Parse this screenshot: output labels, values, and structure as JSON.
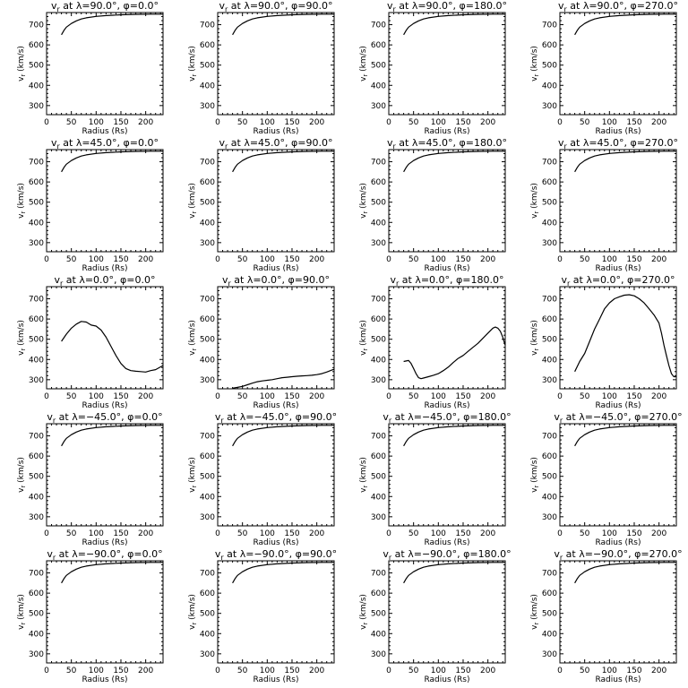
{
  "chart_data": [
    {
      "type": "line",
      "title": "v_r at λ=90.0°, φ=0.0°",
      "subscript": "r",
      "title_prefix": "v",
      "title_rest": " at λ=90.0°, φ=0.0°",
      "xlabel": "Radius (Rs)",
      "ylabel": "v_r (km/s)",
      "ylabel_prefix": "v",
      "ylabel_sub": "r",
      "ylabel_rest": " (km/s)",
      "xlim": [
        0,
        235
      ],
      "ylim": [
        255,
        760
      ],
      "xticks": [
        0,
        50,
        100,
        150,
        200
      ],
      "yticks": [
        300,
        400,
        500,
        600,
        700
      ],
      "x": [
        30,
        35,
        40,
        50,
        60,
        70,
        80,
        100,
        120,
        150,
        180,
        210,
        235
      ],
      "y": [
        650,
        672,
        688,
        706,
        719,
        728,
        734,
        741,
        745,
        749,
        751,
        752,
        752
      ]
    },
    {
      "type": "line",
      "title": "v_r at λ=90.0°, φ=90.0°",
      "title_prefix": "v",
      "title_rest": " at λ=90.0°, φ=90.0°",
      "xlabel": "Radius (Rs)",
      "ylabel_prefix": "v",
      "ylabel_sub": "r",
      "ylabel_rest": " (km/s)",
      "xlim": [
        0,
        235
      ],
      "ylim": [
        255,
        760
      ],
      "xticks": [
        0,
        50,
        100,
        150,
        200
      ],
      "yticks": [
        300,
        400,
        500,
        600,
        700
      ],
      "x": [
        30,
        35,
        40,
        50,
        60,
        70,
        80,
        100,
        120,
        150,
        180,
        210,
        235
      ],
      "y": [
        650,
        672,
        688,
        706,
        719,
        728,
        734,
        741,
        745,
        749,
        751,
        752,
        752
      ]
    },
    {
      "type": "line",
      "title": "v_r at λ=90.0°, φ=180.0°",
      "title_prefix": "v",
      "title_rest": " at λ=90.0°, φ=180.0°",
      "xlabel": "Radius (Rs)",
      "ylabel_prefix": "v",
      "ylabel_sub": "r",
      "ylabel_rest": " (km/s)",
      "xlim": [
        0,
        235
      ],
      "ylim": [
        255,
        760
      ],
      "xticks": [
        0,
        50,
        100,
        150,
        200
      ],
      "yticks": [
        300,
        400,
        500,
        600,
        700
      ],
      "x": [
        30,
        35,
        40,
        50,
        60,
        70,
        80,
        100,
        120,
        150,
        180,
        210,
        235
      ],
      "y": [
        650,
        672,
        688,
        706,
        719,
        728,
        734,
        741,
        745,
        749,
        751,
        752,
        752
      ]
    },
    {
      "type": "line",
      "title": "v_r at λ=90.0°, φ=270.0°",
      "title_prefix": "v",
      "title_rest": " at λ=90.0°, φ=270.0°",
      "xlabel": "Radius (Rs)",
      "ylabel_prefix": "v",
      "ylabel_sub": "r",
      "ylabel_rest": " (km/s)",
      "xlim": [
        0,
        235
      ],
      "ylim": [
        255,
        760
      ],
      "xticks": [
        0,
        50,
        100,
        150,
        200
      ],
      "yticks": [
        300,
        400,
        500,
        600,
        700
      ],
      "x": [
        30,
        35,
        40,
        50,
        60,
        70,
        80,
        100,
        120,
        150,
        180,
        210,
        235
      ],
      "y": [
        650,
        672,
        688,
        706,
        719,
        728,
        734,
        741,
        745,
        749,
        751,
        752,
        752
      ]
    },
    {
      "type": "line",
      "title": "v_r at λ=45.0°, φ=0.0°",
      "title_prefix": "v",
      "title_rest": " at λ=45.0°, φ=0.0°",
      "xlabel": "Radius (Rs)",
      "ylabel_prefix": "v",
      "ylabel_sub": "r",
      "ylabel_rest": " (km/s)",
      "xlim": [
        0,
        235
      ],
      "ylim": [
        255,
        760
      ],
      "xticks": [
        0,
        50,
        100,
        150,
        200
      ],
      "yticks": [
        300,
        400,
        500,
        600,
        700
      ],
      "x": [
        30,
        35,
        40,
        50,
        60,
        70,
        80,
        100,
        120,
        150,
        180,
        210,
        235
      ],
      "y": [
        650,
        672,
        688,
        706,
        719,
        728,
        734,
        741,
        745,
        749,
        751,
        752,
        752
      ]
    },
    {
      "type": "line",
      "title": "v_r at λ=45.0°, φ=90.0°",
      "title_prefix": "v",
      "title_rest": " at λ=45.0°, φ=90.0°",
      "xlabel": "Radius (Rs)",
      "ylabel_prefix": "v",
      "ylabel_sub": "r",
      "ylabel_rest": " (km/s)",
      "xlim": [
        0,
        235
      ],
      "ylim": [
        255,
        760
      ],
      "xticks": [
        0,
        50,
        100,
        150,
        200
      ],
      "yticks": [
        300,
        400,
        500,
        600,
        700
      ],
      "x": [
        30,
        35,
        40,
        50,
        60,
        70,
        80,
        100,
        120,
        150,
        180,
        210,
        235
      ],
      "y": [
        650,
        672,
        688,
        706,
        719,
        728,
        734,
        741,
        745,
        749,
        751,
        752,
        752
      ]
    },
    {
      "type": "line",
      "title": "v_r at λ=45.0°, φ=180.0°",
      "title_prefix": "v",
      "title_rest": " at λ=45.0°, φ=180.0°",
      "xlabel": "Radius (Rs)",
      "ylabel_prefix": "v",
      "ylabel_sub": "r",
      "ylabel_rest": " (km/s)",
      "xlim": [
        0,
        235
      ],
      "ylim": [
        255,
        760
      ],
      "xticks": [
        0,
        50,
        100,
        150,
        200
      ],
      "yticks": [
        300,
        400,
        500,
        600,
        700
      ],
      "x": [
        30,
        35,
        40,
        50,
        60,
        70,
        80,
        100,
        120,
        150,
        180,
        210,
        235
      ],
      "y": [
        650,
        672,
        688,
        706,
        719,
        728,
        734,
        741,
        745,
        749,
        751,
        752,
        752
      ]
    },
    {
      "type": "line",
      "title": "v_r at λ=45.0°, φ=270.0°",
      "title_prefix": "v",
      "title_rest": " at λ=45.0°, φ=270.0°",
      "xlabel": "Radius (Rs)",
      "ylabel_prefix": "v",
      "ylabel_sub": "r",
      "ylabel_rest": " (km/s)",
      "xlim": [
        0,
        235
      ],
      "ylim": [
        255,
        760
      ],
      "xticks": [
        0,
        50,
        100,
        150,
        200
      ],
      "yticks": [
        300,
        400,
        500,
        600,
        700
      ],
      "x": [
        30,
        35,
        40,
        50,
        60,
        70,
        80,
        100,
        120,
        150,
        180,
        210,
        235
      ],
      "y": [
        650,
        672,
        688,
        706,
        719,
        728,
        734,
        741,
        745,
        749,
        751,
        752,
        752
      ]
    },
    {
      "type": "line",
      "title": "v_r at λ=0.0°, φ=0.0°",
      "title_prefix": "v",
      "title_rest": " at λ=0.0°, φ=0.0°",
      "xlabel": "Radius (Rs)",
      "ylabel_prefix": "v",
      "ylabel_sub": "r",
      "ylabel_rest": " (km/s)",
      "xlim": [
        0,
        235
      ],
      "ylim": [
        255,
        760
      ],
      "xticks": [
        0,
        50,
        100,
        150,
        200
      ],
      "yticks": [
        300,
        400,
        500,
        600,
        700
      ],
      "x": [
        30,
        40,
        50,
        60,
        70,
        80,
        90,
        100,
        110,
        120,
        130,
        140,
        150,
        160,
        170,
        180,
        190,
        200,
        210,
        220,
        235
      ],
      "y": [
        490,
        525,
        555,
        575,
        588,
        585,
        570,
        565,
        545,
        510,
        465,
        420,
        380,
        355,
        345,
        342,
        340,
        338,
        345,
        350,
        370
      ]
    },
    {
      "type": "line",
      "title": "v_r at λ=0.0°, φ=90.0°",
      "title_prefix": "v",
      "title_rest": " at λ=0.0°, φ=90.0°",
      "xlabel": "Radius (Rs)",
      "ylabel_prefix": "v",
      "ylabel_sub": "r",
      "ylabel_rest": " (km/s)",
      "xlim": [
        0,
        235
      ],
      "ylim": [
        255,
        760
      ],
      "xticks": [
        0,
        50,
        100,
        150,
        200
      ],
      "yticks": [
        300,
        400,
        500,
        600,
        700
      ],
      "x": [
        30,
        40,
        50,
        60,
        70,
        80,
        90,
        100,
        110,
        120,
        130,
        140,
        150,
        160,
        170,
        180,
        190,
        200,
        210,
        220,
        235
      ],
      "y": [
        258,
        262,
        267,
        275,
        283,
        290,
        294,
        297,
        300,
        305,
        310,
        312,
        315,
        317,
        319,
        320,
        322,
        325,
        330,
        338,
        352
      ]
    },
    {
      "type": "line",
      "title": "v_r at λ=0.0°, φ=180.0°",
      "title_prefix": "v",
      "title_rest": " at λ=0.0°, φ=180.0°",
      "xlabel": "Radius (Rs)",
      "ylabel_prefix": "v",
      "ylabel_sub": "r",
      "ylabel_rest": " (km/s)",
      "xlim": [
        0,
        235
      ],
      "ylim": [
        255,
        760
      ],
      "xticks": [
        0,
        50,
        100,
        150,
        200
      ],
      "yticks": [
        300,
        400,
        500,
        600,
        700
      ],
      "x": [
        30,
        40,
        45,
        50,
        55,
        60,
        65,
        70,
        80,
        90,
        100,
        110,
        120,
        130,
        140,
        150,
        160,
        170,
        180,
        190,
        200,
        210,
        215,
        220,
        225,
        230,
        235
      ],
      "y": [
        390,
        395,
        380,
        355,
        330,
        310,
        305,
        308,
        315,
        322,
        330,
        345,
        362,
        385,
        405,
        420,
        440,
        460,
        480,
        505,
        530,
        555,
        560,
        555,
        540,
        510,
        470
      ]
    },
    {
      "type": "line",
      "title": "v_r at λ=0.0°, φ=270.0°",
      "title_prefix": "v",
      "title_rest": " at λ=0.0°, φ=270.0°",
      "xlabel": "Radius (Rs)",
      "ylabel_prefix": "v",
      "ylabel_sub": "r",
      "ylabel_rest": " (km/s)",
      "xlim": [
        0,
        235
      ],
      "ylim": [
        255,
        760
      ],
      "xticks": [
        0,
        50,
        100,
        150,
        200
      ],
      "yticks": [
        300,
        400,
        500,
        600,
        700
      ],
      "x": [
        30,
        40,
        50,
        60,
        70,
        80,
        90,
        100,
        110,
        120,
        130,
        140,
        150,
        160,
        170,
        180,
        190,
        200,
        205,
        210,
        215,
        220,
        225,
        230,
        235
      ],
      "y": [
        340,
        390,
        430,
        490,
        550,
        600,
        650,
        680,
        700,
        710,
        718,
        720,
        715,
        700,
        680,
        650,
        620,
        580,
        530,
        470,
        420,
        370,
        330,
        315,
        315
      ]
    },
    {
      "type": "line",
      "title": "v_r at λ=-45.0°, φ=0.0°",
      "title_prefix": "v",
      "title_rest": " at λ=−45.0°, φ=0.0°",
      "xlabel": "Radius (Rs)",
      "ylabel_prefix": "v",
      "ylabel_sub": "r",
      "ylabel_rest": " (km/s)",
      "xlim": [
        0,
        235
      ],
      "ylim": [
        255,
        760
      ],
      "xticks": [
        0,
        50,
        100,
        150,
        200
      ],
      "yticks": [
        300,
        400,
        500,
        600,
        700
      ],
      "x": [
        30,
        35,
        40,
        50,
        60,
        70,
        80,
        100,
        120,
        150,
        180,
        210,
        235
      ],
      "y": [
        650,
        672,
        688,
        706,
        719,
        728,
        734,
        741,
        745,
        749,
        751,
        752,
        752
      ]
    },
    {
      "type": "line",
      "title": "v_r at λ=-45.0°, φ=90.0°",
      "title_prefix": "v",
      "title_rest": " at λ=−45.0°, φ=90.0°",
      "xlabel": "Radius (Rs)",
      "ylabel_prefix": "v",
      "ylabel_sub": "r",
      "ylabel_rest": " (km/s)",
      "xlim": [
        0,
        235
      ],
      "ylim": [
        255,
        760
      ],
      "xticks": [
        0,
        50,
        100,
        150,
        200
      ],
      "yticks": [
        300,
        400,
        500,
        600,
        700
      ],
      "x": [
        30,
        35,
        40,
        50,
        60,
        70,
        80,
        100,
        120,
        150,
        180,
        210,
        235
      ],
      "y": [
        650,
        672,
        688,
        706,
        719,
        728,
        734,
        741,
        745,
        749,
        751,
        752,
        752
      ]
    },
    {
      "type": "line",
      "title": "v_r at λ=-45.0°, φ=180.0°",
      "title_prefix": "v",
      "title_rest": " at λ=−45.0°, φ=180.0°",
      "xlabel": "Radius (Rs)",
      "ylabel_prefix": "v",
      "ylabel_sub": "r",
      "ylabel_rest": " (km/s)",
      "xlim": [
        0,
        235
      ],
      "ylim": [
        255,
        760
      ],
      "xticks": [
        0,
        50,
        100,
        150,
        200
      ],
      "yticks": [
        300,
        400,
        500,
        600,
        700
      ],
      "x": [
        30,
        35,
        40,
        50,
        60,
        70,
        80,
        100,
        120,
        150,
        180,
        210,
        235
      ],
      "y": [
        650,
        672,
        688,
        706,
        719,
        728,
        734,
        741,
        745,
        749,
        751,
        752,
        752
      ]
    },
    {
      "type": "line",
      "title": "v_r at λ=-45.0°, φ=270.0°",
      "title_prefix": "v",
      "title_rest": " at λ=−45.0°, φ=270.0°",
      "xlabel": "Radius (Rs)",
      "ylabel_prefix": "v",
      "ylabel_sub": "r",
      "ylabel_rest": " (km/s)",
      "xlim": [
        0,
        235
      ],
      "ylim": [
        255,
        760
      ],
      "xticks": [
        0,
        50,
        100,
        150,
        200
      ],
      "yticks": [
        300,
        400,
        500,
        600,
        700
      ],
      "x": [
        30,
        35,
        40,
        50,
        60,
        70,
        80,
        100,
        120,
        150,
        180,
        210,
        235
      ],
      "y": [
        650,
        672,
        688,
        706,
        719,
        728,
        734,
        741,
        745,
        749,
        751,
        752,
        752
      ]
    },
    {
      "type": "line",
      "title": "v_r at λ=-90.0°, φ=0.0°",
      "title_prefix": "v",
      "title_rest": " at λ=−90.0°, φ=0.0°",
      "xlabel": "Radius (Rs)",
      "ylabel_prefix": "v",
      "ylabel_sub": "r",
      "ylabel_rest": " (km/s)",
      "xlim": [
        0,
        235
      ],
      "ylim": [
        255,
        760
      ],
      "xticks": [
        0,
        50,
        100,
        150,
        200
      ],
      "yticks": [
        300,
        400,
        500,
        600,
        700
      ],
      "x": [
        30,
        35,
        40,
        50,
        60,
        70,
        80,
        100,
        120,
        150,
        180,
        210,
        235
      ],
      "y": [
        650,
        672,
        688,
        706,
        719,
        728,
        734,
        741,
        745,
        749,
        751,
        752,
        752
      ]
    },
    {
      "type": "line",
      "title": "v_r at λ=-90.0°, φ=90.0°",
      "title_prefix": "v",
      "title_rest": " at λ=−90.0°, φ=90.0°",
      "xlabel": "Radius (Rs)",
      "ylabel_prefix": "v",
      "ylabel_sub": "r",
      "ylabel_rest": " (km/s)",
      "xlim": [
        0,
        235
      ],
      "ylim": [
        255,
        760
      ],
      "xticks": [
        0,
        50,
        100,
        150,
        200
      ],
      "yticks": [
        300,
        400,
        500,
        600,
        700
      ],
      "x": [
        30,
        35,
        40,
        50,
        60,
        70,
        80,
        100,
        120,
        150,
        180,
        210,
        235
      ],
      "y": [
        650,
        672,
        688,
        706,
        719,
        728,
        734,
        741,
        745,
        749,
        751,
        752,
        752
      ]
    },
    {
      "type": "line",
      "title": "v_r at λ=-90.0°, φ=180.0°",
      "title_prefix": "v",
      "title_rest": " at λ=−90.0°, φ=180.0°",
      "xlabel": "Radius (Rs)",
      "ylabel_prefix": "v",
      "ylabel_sub": "r",
      "ylabel_rest": " (km/s)",
      "xlim": [
        0,
        235
      ],
      "ylim": [
        255,
        760
      ],
      "xticks": [
        0,
        50,
        100,
        150,
        200
      ],
      "yticks": [
        300,
        400,
        500,
        600,
        700
      ],
      "x": [
        30,
        35,
        40,
        50,
        60,
        70,
        80,
        100,
        120,
        150,
        180,
        210,
        235
      ],
      "y": [
        650,
        672,
        688,
        706,
        719,
        728,
        734,
        741,
        745,
        749,
        751,
        752,
        752
      ]
    },
    {
      "type": "line",
      "title": "v_r at λ=-90.0°, φ=270.0°",
      "title_prefix": "v",
      "title_rest": " at λ=−90.0°, φ=270.0°",
      "xlabel": "Radius (Rs)",
      "ylabel_prefix": "v",
      "ylabel_sub": "r",
      "ylabel_rest": " (km/s)",
      "xlim": [
        0,
        235
      ],
      "ylim": [
        255,
        760
      ],
      "xticks": [
        0,
        50,
        100,
        150,
        200
      ],
      "yticks": [
        300,
        400,
        500,
        600,
        700
      ],
      "x": [
        30,
        35,
        40,
        50,
        60,
        70,
        80,
        100,
        120,
        150,
        180,
        210,
        235
      ],
      "y": [
        650,
        672,
        688,
        706,
        719,
        728,
        734,
        741,
        745,
        749,
        751,
        752,
        752
      ]
    }
  ]
}
